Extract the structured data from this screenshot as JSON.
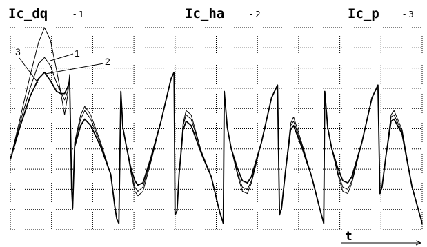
{
  "chart_data": {
    "type": "line",
    "xlabel": "t",
    "grid": true,
    "ylim": [
      -3.5,
      6
    ],
    "xlim": [
      0,
      20.5
    ],
    "series": [
      {
        "name": "Ic_dq",
        "number": "1",
        "points": [
          [
            0,
            -0.2
          ],
          [
            0.5,
            1.8
          ],
          [
            1,
            3.8
          ],
          [
            1.4,
            5.3
          ],
          [
            1.7,
            6.0
          ],
          [
            2.0,
            5.4
          ],
          [
            2.3,
            4.0
          ],
          [
            2.5,
            3.0
          ],
          [
            2.7,
            1.9
          ],
          [
            2.85,
            2.8
          ],
          [
            2.95,
            3.8
          ],
          [
            3.0,
            1.0
          ],
          [
            3.05,
            -1.5
          ],
          [
            3.1,
            -2.5
          ],
          [
            3.2,
            0.6
          ],
          [
            3.5,
            1.9
          ],
          [
            3.7,
            2.3
          ],
          [
            4.0,
            1.9
          ],
          [
            4.5,
            0.6
          ],
          [
            5.0,
            -0.9
          ],
          [
            5.2,
            -2.4
          ],
          [
            5.3,
            -3.0
          ],
          [
            5.4,
            -3.2
          ],
          [
            5.5,
            3.0
          ],
          [
            5.6,
            1.3
          ],
          [
            5.8,
            0.3
          ],
          [
            6.0,
            -0.8
          ],
          [
            6.2,
            -1.7
          ],
          [
            6.35,
            -1.9
          ],
          [
            6.6,
            -1.7
          ],
          [
            7.0,
            -0.3
          ],
          [
            7.5,
            1.6
          ],
          [
            8.0,
            3.6
          ],
          [
            8.15,
            3.9
          ],
          [
            8.2,
            -2.8
          ],
          [
            8.3,
            -2.6
          ],
          [
            8.4,
            -0.9
          ],
          [
            8.6,
            1.5
          ],
          [
            8.75,
            2.1
          ],
          [
            9.0,
            1.9
          ],
          [
            9.5,
            0.2
          ],
          [
            10.0,
            -1.0
          ],
          [
            10.4,
            -2.6
          ],
          [
            10.6,
            -3.2
          ],
          [
            10.65,
            3.0
          ],
          [
            10.8,
            1.3
          ],
          [
            11.0,
            0.3
          ],
          [
            11.3,
            -0.9
          ],
          [
            11.55,
            -1.7
          ],
          [
            11.8,
            -1.8
          ],
          [
            12.0,
            -1.3
          ],
          [
            12.5,
            0.6
          ],
          [
            13.0,
            2.7
          ],
          [
            13.3,
            3.3
          ],
          [
            13.4,
            -2.8
          ],
          [
            13.5,
            -2.5
          ],
          [
            13.7,
            -0.7
          ],
          [
            13.95,
            1.5
          ],
          [
            14.1,
            1.8
          ],
          [
            14.5,
            0.6
          ],
          [
            15.0,
            -1.0
          ],
          [
            15.4,
            -2.5
          ],
          [
            15.6,
            -3.2
          ],
          [
            15.65,
            3.0
          ],
          [
            15.8,
            1.3
          ],
          [
            16.0,
            0.3
          ],
          [
            16.3,
            -0.9
          ],
          [
            16.55,
            -1.7
          ],
          [
            16.8,
            -1.8
          ],
          [
            17.0,
            -1.3
          ],
          [
            17.5,
            0.6
          ],
          [
            18.0,
            2.7
          ],
          [
            18.3,
            3.3
          ],
          [
            18.4,
            -1.8
          ],
          [
            18.5,
            -1.5
          ],
          [
            18.7,
            0.0
          ],
          [
            18.95,
            1.9
          ],
          [
            19.1,
            2.1
          ],
          [
            19.5,
            1.2
          ],
          [
            20.0,
            -1.5
          ],
          [
            20.5,
            -3.2
          ]
        ]
      },
      {
        "name": "Ic_ha",
        "number": "2",
        "points": [
          [
            0,
            -0.2
          ],
          [
            0.5,
            1.6
          ],
          [
            1,
            3.2
          ],
          [
            1.4,
            4.3
          ],
          [
            1.7,
            4.6
          ],
          [
            2.0,
            4.2
          ],
          [
            2.3,
            3.4
          ],
          [
            2.5,
            3.0
          ],
          [
            2.7,
            2.6
          ],
          [
            2.85,
            3.0
          ],
          [
            2.95,
            3.6
          ],
          [
            3.0,
            1.0
          ],
          [
            3.05,
            -1.5
          ],
          [
            3.1,
            -2.5
          ],
          [
            3.2,
            0.5
          ],
          [
            3.5,
            1.7
          ],
          [
            3.7,
            2.1
          ],
          [
            4.0,
            1.7
          ],
          [
            4.5,
            0.5
          ],
          [
            5.0,
            -0.9
          ],
          [
            5.2,
            -2.4
          ],
          [
            5.3,
            -3.0
          ],
          [
            5.4,
            -3.2
          ],
          [
            5.5,
            3.0
          ],
          [
            5.6,
            1.3
          ],
          [
            5.8,
            0.3
          ],
          [
            6.0,
            -0.7
          ],
          [
            6.2,
            -1.5
          ],
          [
            6.35,
            -1.7
          ],
          [
            6.6,
            -1.5
          ],
          [
            7.0,
            -0.2
          ],
          [
            7.5,
            1.6
          ],
          [
            8.0,
            3.6
          ],
          [
            8.15,
            3.9
          ],
          [
            8.2,
            -2.8
          ],
          [
            8.3,
            -2.6
          ],
          [
            8.4,
            -0.9
          ],
          [
            8.6,
            1.4
          ],
          [
            8.75,
            1.9
          ],
          [
            9.0,
            1.7
          ],
          [
            9.5,
            0.2
          ],
          [
            10.0,
            -1.0
          ],
          [
            10.4,
            -2.6
          ],
          [
            10.6,
            -3.2
          ],
          [
            10.65,
            3.0
          ],
          [
            10.8,
            1.3
          ],
          [
            11.0,
            0.3
          ],
          [
            11.3,
            -0.8
          ],
          [
            11.55,
            -1.5
          ],
          [
            11.8,
            -1.6
          ],
          [
            12.0,
            -1.2
          ],
          [
            12.5,
            0.6
          ],
          [
            13.0,
            2.7
          ],
          [
            13.3,
            3.3
          ],
          [
            13.4,
            -2.8
          ],
          [
            13.5,
            -2.5
          ],
          [
            13.7,
            -0.7
          ],
          [
            13.95,
            1.4
          ],
          [
            14.1,
            1.6
          ],
          [
            14.5,
            0.5
          ],
          [
            15.0,
            -1.0
          ],
          [
            15.4,
            -2.5
          ],
          [
            15.6,
            -3.2
          ],
          [
            15.65,
            3.0
          ],
          [
            15.8,
            1.3
          ],
          [
            16.0,
            0.3
          ],
          [
            16.3,
            -0.8
          ],
          [
            16.55,
            -1.5
          ],
          [
            16.8,
            -1.6
          ],
          [
            17.0,
            -1.2
          ],
          [
            17.5,
            0.6
          ],
          [
            18.0,
            2.7
          ],
          [
            18.3,
            3.3
          ],
          [
            18.4,
            -1.8
          ],
          [
            18.5,
            -1.5
          ],
          [
            18.7,
            0.0
          ],
          [
            18.95,
            1.8
          ],
          [
            19.1,
            1.9
          ],
          [
            19.5,
            1.1
          ],
          [
            20.0,
            -1.5
          ],
          [
            20.5,
            -3.2
          ]
        ]
      },
      {
        "name": "Ic_p",
        "number": "3",
        "points": [
          [
            0,
            -0.2
          ],
          [
            0.5,
            1.4
          ],
          [
            1,
            2.8
          ],
          [
            1.4,
            3.6
          ],
          [
            1.7,
            3.9
          ],
          [
            2.0,
            3.5
          ],
          [
            2.3,
            3.0
          ],
          [
            2.5,
            2.9
          ],
          [
            2.7,
            2.9
          ],
          [
            2.85,
            3.2
          ],
          [
            2.95,
            3.5
          ],
          [
            3.0,
            1.0
          ],
          [
            3.05,
            -1.5
          ],
          [
            3.1,
            -2.5
          ],
          [
            3.2,
            0.4
          ],
          [
            3.5,
            1.4
          ],
          [
            3.7,
            1.7
          ],
          [
            4.0,
            1.4
          ],
          [
            4.5,
            0.4
          ],
          [
            5.0,
            -0.9
          ],
          [
            5.2,
            -2.4
          ],
          [
            5.3,
            -3.0
          ],
          [
            5.4,
            -3.2
          ],
          [
            5.5,
            3.0
          ],
          [
            5.6,
            1.3
          ],
          [
            5.8,
            0.3
          ],
          [
            6.0,
            -0.6
          ],
          [
            6.2,
            -1.2
          ],
          [
            6.35,
            -1.4
          ],
          [
            6.6,
            -1.3
          ],
          [
            7.0,
            -0.1
          ],
          [
            7.5,
            1.6
          ],
          [
            8.0,
            3.6
          ],
          [
            8.15,
            3.9
          ],
          [
            8.2,
            -2.8
          ],
          [
            8.3,
            -2.6
          ],
          [
            8.4,
            -0.9
          ],
          [
            8.6,
            1.2
          ],
          [
            8.75,
            1.6
          ],
          [
            9.0,
            1.4
          ],
          [
            9.5,
            0.1
          ],
          [
            10.0,
            -1.0
          ],
          [
            10.4,
            -2.6
          ],
          [
            10.6,
            -3.2
          ],
          [
            10.65,
            3.0
          ],
          [
            10.8,
            1.3
          ],
          [
            11.0,
            0.3
          ],
          [
            11.3,
            -0.6
          ],
          [
            11.55,
            -1.2
          ],
          [
            11.8,
            -1.3
          ],
          [
            12.0,
            -1.0
          ],
          [
            12.5,
            0.6
          ],
          [
            13.0,
            2.7
          ],
          [
            13.3,
            3.3
          ],
          [
            13.4,
            -2.8
          ],
          [
            13.5,
            -2.5
          ],
          [
            13.7,
            -0.7
          ],
          [
            13.95,
            1.2
          ],
          [
            14.1,
            1.4
          ],
          [
            14.5,
            0.4
          ],
          [
            15.0,
            -1.0
          ],
          [
            15.4,
            -2.5
          ],
          [
            15.6,
            -3.2
          ],
          [
            15.65,
            3.0
          ],
          [
            15.8,
            1.3
          ],
          [
            16.0,
            0.3
          ],
          [
            16.3,
            -0.6
          ],
          [
            16.55,
            -1.2
          ],
          [
            16.8,
            -1.3
          ],
          [
            17.0,
            -1.0
          ],
          [
            17.5,
            0.6
          ],
          [
            18.0,
            2.7
          ],
          [
            18.3,
            3.3
          ],
          [
            18.4,
            -1.8
          ],
          [
            18.5,
            -1.5
          ],
          [
            18.7,
            0.0
          ],
          [
            18.95,
            1.6
          ],
          [
            19.1,
            1.7
          ],
          [
            19.5,
            1.0
          ],
          [
            20.0,
            -1.5
          ],
          [
            20.5,
            -3.2
          ]
        ]
      }
    ]
  }
}
